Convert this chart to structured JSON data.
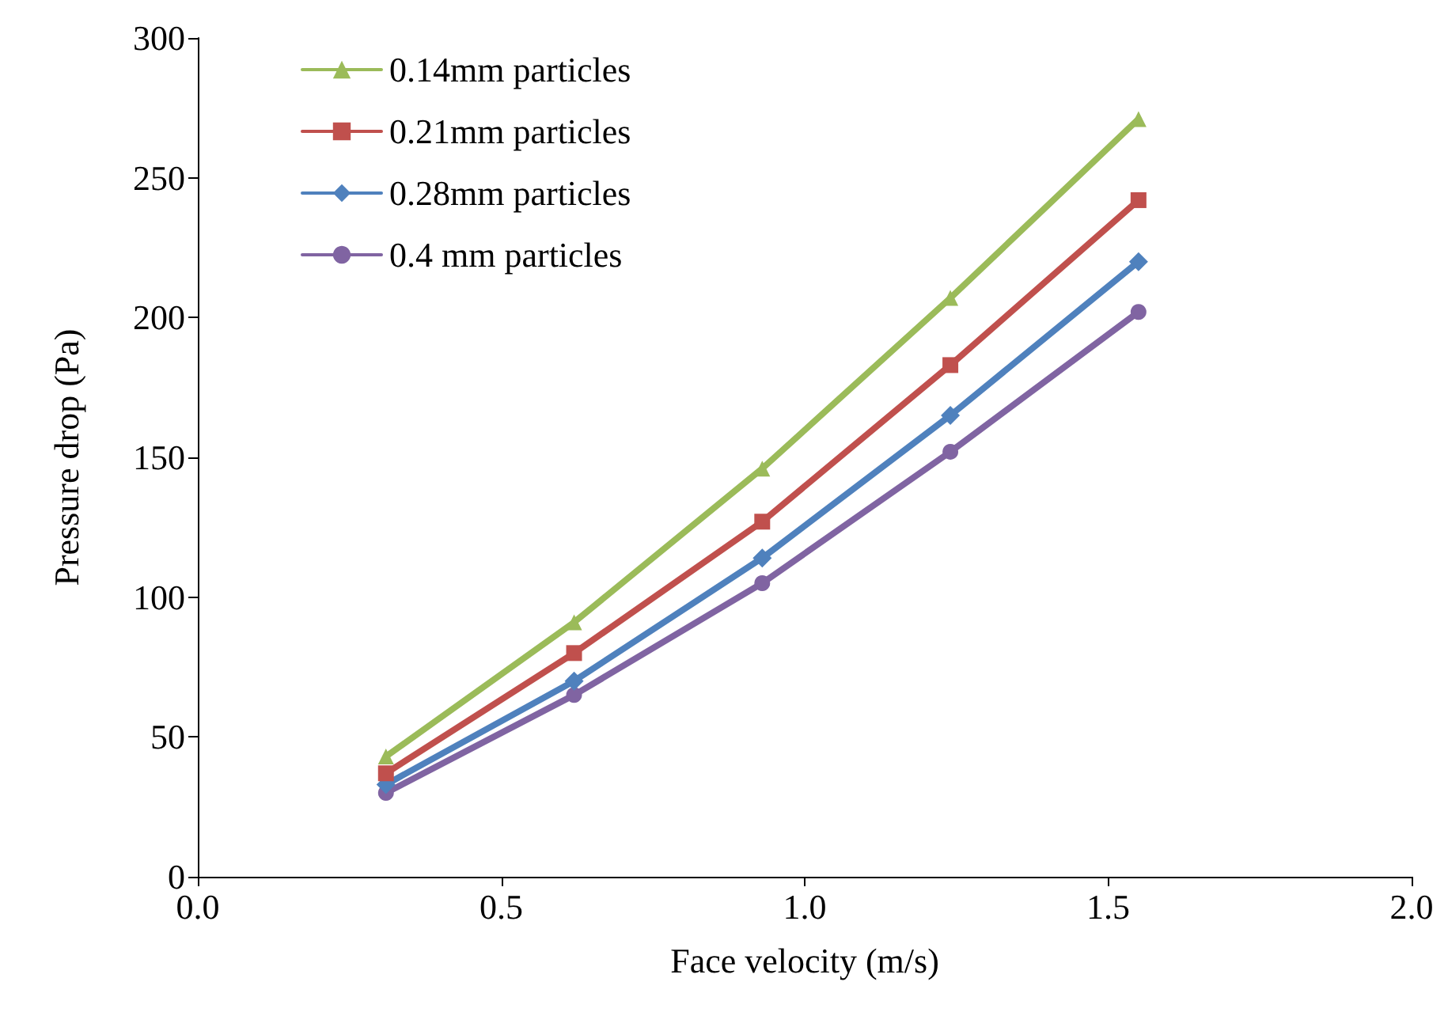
{
  "chart_data": {
    "type": "line",
    "xlabel": "Face velocity (m/s)",
    "ylabel": "Pressure drop (Pa)",
    "x": [
      0.31,
      0.62,
      0.93,
      1.24,
      1.55
    ],
    "xlim": [
      0,
      2
    ],
    "xticks": [
      {
        "value": 0,
        "label": "0.0"
      },
      {
        "value": 0.5,
        "label": "0.5"
      },
      {
        "value": 1,
        "label": "1.0"
      },
      {
        "value": 1.5,
        "label": "1.5"
      },
      {
        "value": 2,
        "label": "2.0"
      }
    ],
    "ylim": [
      0,
      300
    ],
    "yticks": [
      0,
      50,
      100,
      150,
      200,
      250,
      300
    ],
    "grid": false,
    "legend": "top left",
    "line_style": "solid",
    "series": [
      {
        "name": "0.14mm particles",
        "color": "#9bbb59",
        "marker": "triangle",
        "values": [
          43,
          91,
          146,
          207,
          271
        ]
      },
      {
        "name": "0.21mm particles",
        "color": "#c0504d",
        "marker": "square",
        "values": [
          37,
          80,
          127,
          183,
          242
        ]
      },
      {
        "name": "0.28mm particles",
        "color": "#4f81bd",
        "marker": "diamond",
        "values": [
          33,
          70,
          114,
          165,
          220
        ]
      },
      {
        "name": "0.4 mm particles",
        "color": "#8064a2",
        "marker": "circle",
        "values": [
          30,
          65,
          105,
          152,
          202
        ]
      }
    ]
  }
}
